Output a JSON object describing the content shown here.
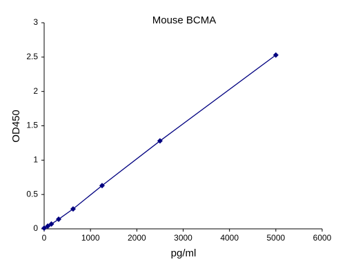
{
  "chart_data": {
    "type": "line",
    "title": "Mouse BCMA",
    "x_label": "pg/ml",
    "y_label": "OD450",
    "x": [
      0,
      78.125,
      156.25,
      312.5,
      625,
      1250,
      2500,
      5000
    ],
    "values": [
      0.01,
      0.04,
      0.07,
      0.14,
      0.29,
      0.63,
      1.28,
      2.53
    ],
    "color": "#000080",
    "markers": true,
    "xlim": [
      0,
      6000
    ],
    "xticks": [
      0,
      1000,
      2000,
      3000,
      4000,
      5000,
      6000
    ],
    "ylim": [
      0,
      3
    ],
    "yticks": [
      0,
      0.5,
      1,
      1.5,
      2,
      2.5,
      3
    ],
    "grid": false
  }
}
